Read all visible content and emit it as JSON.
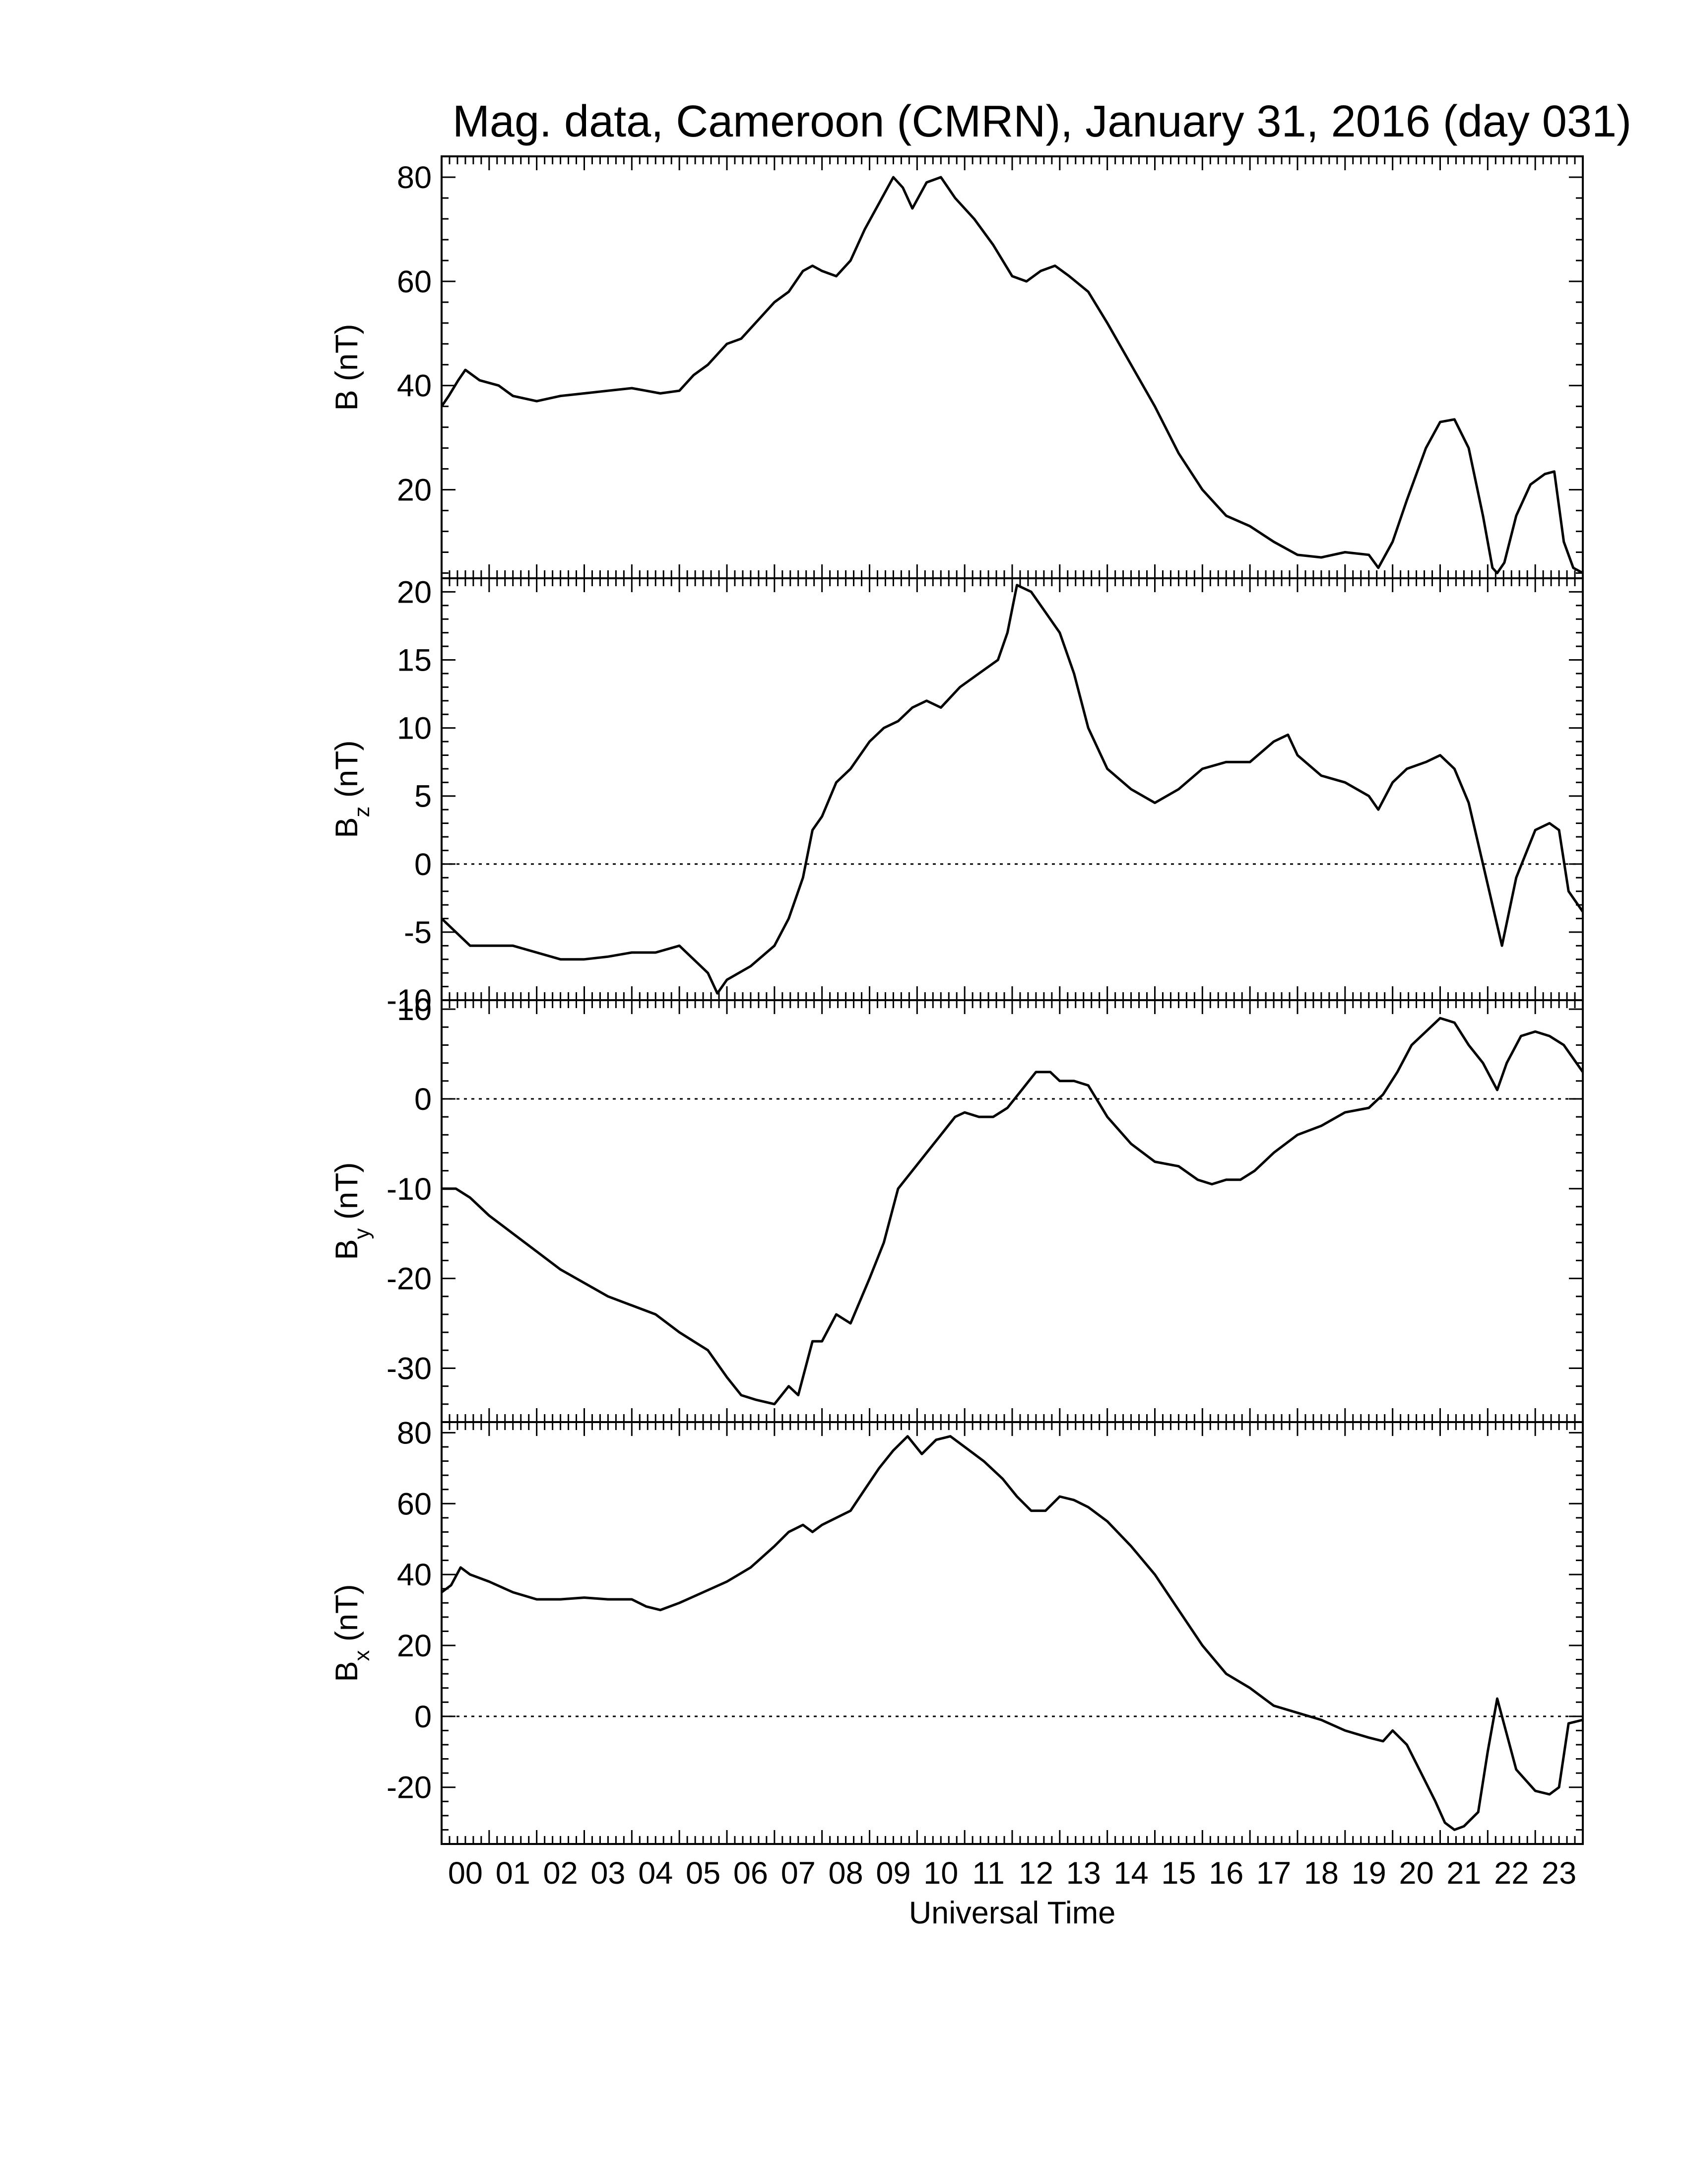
{
  "chart_data": {
    "title": "Mag. data, Cameroon (CMRN), January 31, 2016 (day 031)",
    "xlabel": "Universal Time",
    "x_ticks": [
      "00",
      "01",
      "02",
      "03",
      "04",
      "05",
      "06",
      "07",
      "08",
      "09",
      "10",
      "11",
      "12",
      "13",
      "14",
      "15",
      "16",
      "17",
      "18",
      "19",
      "20",
      "21",
      "22",
      "23"
    ],
    "xlim": [
      0,
      24
    ],
    "panels": [
      {
        "type": "line",
        "ylabel": "B (nT)",
        "ylabel_sub": "",
        "ylim": [
          3,
          84
        ],
        "yticks": [
          20,
          40,
          60,
          80
        ],
        "ytick_labels": [
          "20",
          "40",
          "60",
          "80"
        ],
        "zero_line": false,
        "x": [
          0,
          0.15,
          0.35,
          0.5,
          0.8,
          1.2,
          1.5,
          2.0,
          2.5,
          3.0,
          3.5,
          4.0,
          4.3,
          4.6,
          5.0,
          5.3,
          5.6,
          6.0,
          6.3,
          6.6,
          7.0,
          7.3,
          7.6,
          7.8,
          8.0,
          8.3,
          8.6,
          8.9,
          9.2,
          9.5,
          9.7,
          9.9,
          10.2,
          10.5,
          10.8,
          11.2,
          11.6,
          12.0,
          12.3,
          12.6,
          12.9,
          13.2,
          13.6,
          14.0,
          14.5,
          15.0,
          15.5,
          16.0,
          16.5,
          17.0,
          17.5,
          18.0,
          18.5,
          19.0,
          19.5,
          19.7,
          20.0,
          20.3,
          20.7,
          21.0,
          21.3,
          21.6,
          21.9,
          22.1,
          22.2,
          22.35,
          22.6,
          22.9,
          23.2,
          23.4,
          23.6,
          23.8,
          24.0
        ],
        "y": [
          36,
          38,
          41,
          43,
          41,
          40,
          38,
          37,
          38,
          38.5,
          39,
          39.5,
          39,
          38.5,
          39,
          42,
          44,
          48,
          49,
          52,
          56,
          58,
          62,
          63,
          62,
          61,
          64,
          70,
          75,
          80,
          78,
          74,
          79,
          80,
          76,
          72,
          67,
          61,
          60,
          62,
          63,
          61,
          58,
          52,
          44,
          36,
          27,
          20,
          15,
          13,
          10,
          7.5,
          7,
          8,
          7.5,
          5,
          10,
          18,
          28,
          33,
          33.5,
          28,
          15,
          5,
          4,
          6,
          15,
          21,
          23,
          23.5,
          10,
          5,
          4
        ]
      },
      {
        "type": "line",
        "ylabel": "B",
        "ylabel_sub": "z",
        "ylabel_unit": "(nT)",
        "ylim": [
          -10,
          21
        ],
        "yticks": [
          -10,
          -5,
          0,
          5,
          10,
          15,
          20
        ],
        "ytick_labels": [
          "-10",
          "-5",
          "0",
          "5",
          "10",
          "15",
          "20"
        ],
        "zero_line": true,
        "x": [
          0,
          0.3,
          0.6,
          1.0,
          1.5,
          2.0,
          2.5,
          3.0,
          3.5,
          4.0,
          4.5,
          5.0,
          5.3,
          5.6,
          5.8,
          6.0,
          6.5,
          7.0,
          7.3,
          7.6,
          7.8,
          8.0,
          8.3,
          8.6,
          9.0,
          9.3,
          9.6,
          9.9,
          10.2,
          10.5,
          10.9,
          11.3,
          11.7,
          11.9,
          12.1,
          12.4,
          12.7,
          13.0,
          13.3,
          13.6,
          14.0,
          14.5,
          15.0,
          15.5,
          16.0,
          16.5,
          17.0,
          17.5,
          17.8,
          18.0,
          18.5,
          19.0,
          19.5,
          19.7,
          20.0,
          20.3,
          20.7,
          21.0,
          21.3,
          21.6,
          21.9,
          22.1,
          22.3,
          22.6,
          23.0,
          23.3,
          23.5,
          23.7,
          24.0
        ],
        "y": [
          -4,
          -5,
          -6,
          -6,
          -6,
          -6.5,
          -7,
          -7,
          -6.8,
          -6.5,
          -6.5,
          -6,
          -7,
          -8,
          -9.5,
          -8.5,
          -7.5,
          -6,
          -4,
          -1,
          2.5,
          3.5,
          6,
          7,
          9,
          10,
          10.5,
          11.5,
          12,
          11.5,
          13,
          14,
          15,
          17,
          20.5,
          20,
          18.5,
          17,
          14,
          10,
          7,
          5.5,
          4.5,
          5.5,
          7,
          7.5,
          7.5,
          9,
          9.5,
          8,
          6.5,
          6,
          5,
          4,
          6,
          7,
          7.5,
          8,
          7,
          4.5,
          0,
          -3,
          -6,
          -1,
          2.5,
          3,
          2.5,
          -2,
          -3.5
        ]
      },
      {
        "type": "line",
        "ylabel": "B",
        "ylabel_sub": "y",
        "ylabel_unit": "(nT)",
        "ylim": [
          -36,
          11
        ],
        "yticks": [
          -30,
          -20,
          -10,
          0,
          10
        ],
        "ytick_labels": [
          "-30",
          "-20",
          "-10",
          "0",
          "10"
        ],
        "zero_line": true,
        "x": [
          0,
          0.3,
          0.6,
          1.0,
          1.5,
          2.0,
          2.5,
          3.0,
          3.5,
          4.0,
          4.5,
          5.0,
          5.3,
          5.6,
          6.0,
          6.3,
          6.6,
          7.0,
          7.3,
          7.5,
          7.8,
          8.0,
          8.3,
          8.6,
          9.0,
          9.3,
          9.6,
          9.9,
          10.2,
          10.5,
          10.8,
          11.0,
          11.3,
          11.6,
          11.9,
          12.2,
          12.5,
          12.8,
          13.0,
          13.3,
          13.6,
          14.0,
          14.5,
          15.0,
          15.5,
          15.9,
          16.2,
          16.5,
          16.8,
          17.1,
          17.5,
          18.0,
          18.5,
          19.0,
          19.5,
          19.8,
          20.1,
          20.4,
          20.7,
          21.0,
          21.3,
          21.6,
          21.9,
          22.1,
          22.2,
          22.4,
          22.7,
          23.0,
          23.3,
          23.6,
          24.0
        ],
        "y": [
          -10,
          -10,
          -11,
          -13,
          -15,
          -17,
          -19,
          -20.5,
          -22,
          -23,
          -24,
          -26,
          -27,
          -28,
          -31,
          -33,
          -33.5,
          -34,
          -32,
          -33,
          -27,
          -27,
          -24,
          -25,
          -20,
          -16,
          -10,
          -8,
          -6,
          -4,
          -2,
          -1.5,
          -2,
          -2,
          -1,
          1,
          3,
          3,
          2,
          2,
          1.5,
          -2,
          -5,
          -7,
          -7.5,
          -9,
          -9.5,
          -9,
          -9,
          -8,
          -6,
          -4,
          -3,
          -1.5,
          -1,
          0.5,
          3,
          6,
          7.5,
          9,
          8.5,
          6,
          4,
          2,
          1,
          4,
          7,
          7.5,
          7,
          6,
          3
        ]
      },
      {
        "type": "line",
        "ylabel": "B",
        "ylabel_sub": "x",
        "ylabel_unit": "(nT)",
        "ylim": [
          -36,
          83
        ],
        "yticks": [
          -20,
          0,
          20,
          40,
          60,
          80
        ],
        "ytick_labels": [
          "-20",
          "0",
          "20",
          "40",
          "60",
          "80"
        ],
        "zero_line": true,
        "x": [
          0,
          0.2,
          0.4,
          0.6,
          1.0,
          1.5,
          2.0,
          2.5,
          3.0,
          3.5,
          4.0,
          4.3,
          4.6,
          5.0,
          5.5,
          6.0,
          6.5,
          7.0,
          7.3,
          7.6,
          7.8,
          8.0,
          8.3,
          8.6,
          8.9,
          9.2,
          9.5,
          9.8,
          10.1,
          10.4,
          10.7,
          11.0,
          11.4,
          11.8,
          12.1,
          12.4,
          12.7,
          13.0,
          13.3,
          13.6,
          14.0,
          14.5,
          15.0,
          15.5,
          16.0,
          16.5,
          17.0,
          17.5,
          18.0,
          18.5,
          19.0,
          19.5,
          19.8,
          20.0,
          20.3,
          20.6,
          20.9,
          21.1,
          21.3,
          21.5,
          21.8,
          22.0,
          22.2,
          22.4,
          22.6,
          23.0,
          23.3,
          23.5,
          23.7,
          24.0
        ],
        "y": [
          35,
          37,
          42,
          40,
          38,
          35,
          33,
          33,
          33.5,
          33,
          33,
          31,
          30,
          32,
          35,
          38,
          42,
          48,
          52,
          54,
          52,
          54,
          56,
          58,
          64,
          70,
          75,
          79,
          74,
          78,
          79,
          76,
          72,
          67,
          62,
          58,
          58,
          62,
          61,
          59,
          55,
          48,
          40,
          30,
          20,
          12,
          8,
          3,
          1,
          -1,
          -4,
          -6,
          -7,
          -4,
          -8,
          -16,
          -24,
          -30,
          -32,
          -31,
          -27,
          -10,
          5,
          -5,
          -15,
          -21,
          -22,
          -20,
          -2,
          -1
        ]
      }
    ]
  }
}
